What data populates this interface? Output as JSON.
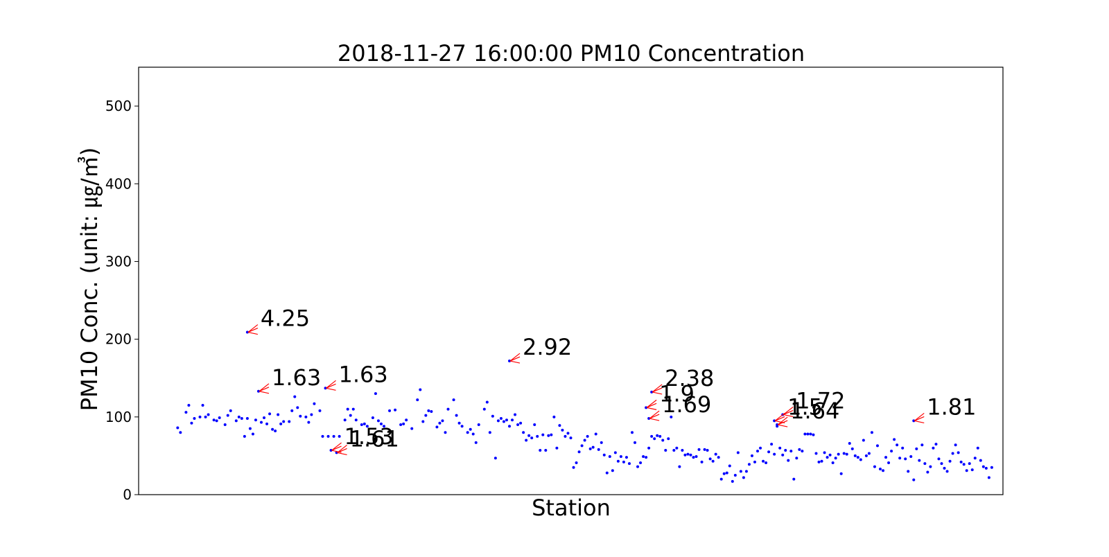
{
  "chart_data": {
    "type": "scatter",
    "title": "2018-11-27 16:00:00 PM10 Concentration",
    "xlabel": "Station",
    "ylabel": "PM10 Conc. (unit: ㎍/㎥)",
    "xlim": [
      -10,
      300
    ],
    "ylim": [
      0,
      550
    ],
    "yticks": [
      0,
      100,
      200,
      300,
      400,
      500
    ],
    "xticks": [],
    "grid": false,
    "legend": "none",
    "colors": {
      "points": "#0000ff",
      "annotations": "#ff0000",
      "frame": "#000000"
    },
    "series": [
      {
        "values": [
          [
            4,
            86
          ],
          [
            5,
            80
          ],
          [
            7,
            106
          ],
          [
            8,
            115
          ],
          [
            9,
            92
          ],
          [
            10,
            98
          ],
          [
            12,
            100
          ],
          [
            13,
            115
          ],
          [
            14,
            100
          ],
          [
            15,
            103
          ],
          [
            17,
            96
          ],
          [
            18,
            95
          ],
          [
            19,
            99
          ],
          [
            21,
            90
          ],
          [
            22,
            102
          ],
          [
            23,
            108
          ],
          [
            25,
            95
          ],
          [
            26,
            100
          ],
          [
            27,
            98
          ],
          [
            28,
            75
          ],
          [
            29,
            98
          ],
          [
            30,
            85
          ],
          [
            31,
            78
          ],
          [
            32,
            96
          ],
          [
            34,
            93
          ],
          [
            35,
            99
          ],
          [
            36,
            91
          ],
          [
            37,
            104
          ],
          [
            38,
            84
          ],
          [
            39,
            82
          ],
          [
            40,
            103
          ],
          [
            41,
            91
          ],
          [
            42,
            94
          ],
          [
            44,
            94
          ],
          [
            45,
            108
          ],
          [
            46,
            126
          ],
          [
            47,
            112
          ],
          [
            48,
            101
          ],
          [
            50,
            100
          ],
          [
            51,
            93
          ],
          [
            52,
            103
          ],
          [
            53,
            117
          ],
          [
            55,
            108
          ],
          [
            56,
            75
          ],
          [
            58,
            75
          ],
          [
            60,
            75
          ],
          [
            62,
            75
          ],
          [
            64,
            96
          ],
          [
            65,
            110
          ],
          [
            66,
            102
          ],
          [
            67,
            110
          ],
          [
            68,
            96
          ],
          [
            70,
            90
          ],
          [
            71,
            91
          ],
          [
            72,
            88
          ],
          [
            74,
            99
          ],
          [
            75,
            130
          ],
          [
            76,
            95
          ],
          [
            77,
            91
          ],
          [
            78,
            88
          ],
          [
            80,
            108
          ],
          [
            82,
            109
          ],
          [
            84,
            90
          ],
          [
            85,
            91
          ],
          [
            86,
            96
          ],
          [
            88,
            85
          ],
          [
            90,
            122
          ],
          [
            91,
            135
          ],
          [
            92,
            94
          ],
          [
            93,
            102
          ],
          [
            94,
            108
          ],
          [
            95,
            107
          ],
          [
            97,
            87
          ],
          [
            98,
            92
          ],
          [
            99,
            95
          ],
          [
            100,
            80
          ],
          [
            101,
            110
          ],
          [
            103,
            122
          ],
          [
            104,
            102
          ],
          [
            105,
            92
          ],
          [
            106,
            88
          ],
          [
            108,
            80
          ],
          [
            109,
            84
          ],
          [
            110,
            78
          ],
          [
            111,
            67
          ],
          [
            112,
            90
          ],
          [
            114,
            110
          ],
          [
            115,
            119
          ],
          [
            116,
            80
          ],
          [
            117,
            101
          ],
          [
            118,
            47
          ],
          [
            119,
            95
          ],
          [
            120,
            98
          ],
          [
            121,
            94
          ],
          [
            122,
            96
          ],
          [
            123,
            88
          ],
          [
            124,
            96
          ],
          [
            125,
            103
          ],
          [
            126,
            90
          ],
          [
            127,
            92
          ],
          [
            128,
            80
          ],
          [
            129,
            70
          ],
          [
            130,
            76
          ],
          [
            131,
            73
          ],
          [
            132,
            90
          ],
          [
            133,
            75
          ],
          [
            134,
            57
          ],
          [
            135,
            77
          ],
          [
            136,
            57
          ],
          [
            137,
            76
          ],
          [
            138,
            77
          ],
          [
            139,
            100
          ],
          [
            140,
            60
          ],
          [
            141,
            89
          ],
          [
            142,
            83
          ],
          [
            143,
            75
          ],
          [
            144,
            79
          ],
          [
            145,
            73
          ],
          [
            146,
            35
          ],
          [
            147,
            41
          ],
          [
            148,
            55
          ],
          [
            149,
            63
          ],
          [
            150,
            70
          ],
          [
            151,
            75
          ],
          [
            152,
            59
          ],
          [
            153,
            61
          ],
          [
            154,
            78
          ],
          [
            155,
            58
          ],
          [
            156,
            67
          ],
          [
            157,
            51
          ],
          [
            158,
            28
          ],
          [
            159,
            49
          ],
          [
            160,
            31
          ],
          [
            161,
            54
          ],
          [
            162,
            43
          ],
          [
            163,
            49
          ],
          [
            164,
            42
          ],
          [
            165,
            48
          ],
          [
            166,
            40
          ],
          [
            167,
            80
          ],
          [
            168,
            67
          ],
          [
            169,
            36
          ],
          [
            170,
            41
          ],
          [
            171,
            49
          ],
          [
            172,
            48
          ],
          [
            173,
            60
          ],
          [
            174,
            75
          ],
          [
            175,
            72
          ],
          [
            176,
            76
          ],
          [
            177,
            75
          ],
          [
            178,
            70
          ],
          [
            179,
            57
          ],
          [
            180,
            72
          ],
          [
            181,
            100
          ],
          [
            182,
            57
          ],
          [
            183,
            60
          ],
          [
            184,
            36
          ],
          [
            185,
            57
          ],
          [
            186,
            51
          ],
          [
            187,
            52
          ],
          [
            188,
            51
          ],
          [
            189,
            48
          ],
          [
            190,
            49
          ],
          [
            191,
            58
          ],
          [
            192,
            42
          ],
          [
            193,
            58
          ],
          [
            194,
            57
          ],
          [
            195,
            46
          ],
          [
            196,
            43
          ],
          [
            197,
            52
          ],
          [
            198,
            48
          ],
          [
            199,
            20
          ],
          [
            200,
            27
          ],
          [
            201,
            28
          ],
          [
            202,
            37
          ],
          [
            203,
            17
          ],
          [
            204,
            25
          ],
          [
            205,
            54
          ],
          [
            206,
            30
          ],
          [
            207,
            22
          ],
          [
            208,
            30
          ],
          [
            209,
            39
          ],
          [
            210,
            50
          ],
          [
            211,
            42
          ],
          [
            212,
            56
          ],
          [
            213,
            60
          ],
          [
            214,
            43
          ],
          [
            215,
            41
          ],
          [
            216,
            55
          ],
          [
            217,
            65
          ],
          [
            218,
            52
          ],
          [
            219,
            88
          ],
          [
            220,
            60
          ],
          [
            221,
            51
          ],
          [
            222,
            57
          ],
          [
            223,
            44
          ],
          [
            224,
            56
          ],
          [
            225,
            20
          ],
          [
            226,
            47
          ],
          [
            227,
            58
          ],
          [
            228,
            56
          ],
          [
            229,
            78
          ],
          [
            230,
            78
          ],
          [
            231,
            78
          ],
          [
            232,
            77
          ],
          [
            233,
            53
          ],
          [
            234,
            42
          ],
          [
            235,
            43
          ],
          [
            236,
            54
          ],
          [
            237,
            48
          ],
          [
            238,
            51
          ],
          [
            239,
            41
          ],
          [
            240,
            47
          ],
          [
            241,
            52
          ],
          [
            242,
            27
          ],
          [
            243,
            53
          ],
          [
            244,
            52
          ],
          [
            245,
            66
          ],
          [
            246,
            59
          ],
          [
            247,
            50
          ],
          [
            248,
            48
          ],
          [
            249,
            45
          ],
          [
            250,
            70
          ],
          [
            251,
            50
          ],
          [
            252,
            53
          ],
          [
            253,
            80
          ],
          [
            254,
            36
          ],
          [
            255,
            63
          ],
          [
            256,
            33
          ],
          [
            257,
            31
          ],
          [
            258,
            48
          ],
          [
            259,
            41
          ],
          [
            260,
            56
          ],
          [
            261,
            71
          ],
          [
            262,
            64
          ],
          [
            263,
            47
          ],
          [
            264,
            60
          ],
          [
            265,
            46
          ],
          [
            266,
            30
          ],
          [
            267,
            49
          ],
          [
            268,
            19
          ],
          [
            269,
            59
          ],
          [
            270,
            44
          ],
          [
            271,
            64
          ],
          [
            272,
            40
          ],
          [
            273,
            29
          ],
          [
            274,
            36
          ],
          [
            275,
            60
          ],
          [
            276,
            65
          ],
          [
            277,
            46
          ],
          [
            278,
            40
          ],
          [
            279,
            34
          ],
          [
            280,
            30
          ],
          [
            281,
            43
          ],
          [
            282,
            53
          ],
          [
            283,
            64
          ],
          [
            284,
            54
          ],
          [
            285,
            42
          ],
          [
            286,
            39
          ],
          [
            287,
            31
          ],
          [
            288,
            40
          ],
          [
            289,
            32
          ],
          [
            290,
            47
          ],
          [
            291,
            60
          ],
          [
            292,
            44
          ],
          [
            293,
            36
          ],
          [
            294,
            34
          ],
          [
            295,
            22
          ],
          [
            296,
            35
          ],
          [
            33,
            133
          ],
          [
            57,
            137
          ],
          [
            59,
            57
          ],
          [
            61,
            54
          ],
          [
            123,
            172
          ],
          [
            29,
            209
          ],
          [
            172,
            112
          ],
          [
            173,
            98
          ],
          [
            174,
            132
          ],
          [
            218,
            95
          ],
          [
            219,
            90
          ],
          [
            221,
            103
          ],
          [
            268,
            95
          ]
        ]
      }
    ],
    "annotations": [
      {
        "label": "4.25",
        "point": [
          29,
          209
        ]
      },
      {
        "label": "1.63",
        "point": [
          33,
          133
        ]
      },
      {
        "label": "1.63",
        "point": [
          57,
          137
        ]
      },
      {
        "label": "1.53",
        "point": [
          59,
          57
        ]
      },
      {
        "label": "1.61",
        "point": [
          61,
          54
        ]
      },
      {
        "label": "2.92",
        "point": [
          123,
          172
        ]
      },
      {
        "label": "2.38",
        "point": [
          174,
          132
        ]
      },
      {
        "label": "1.9",
        "point": [
          172,
          112
        ]
      },
      {
        "label": "1.69",
        "point": [
          173,
          98
        ]
      },
      {
        "label": "1.72",
        "point": [
          221,
          103
        ]
      },
      {
        "label": "1.64",
        "point": [
          219,
          90
        ]
      },
      {
        "label": "1.5",
        "point": [
          218,
          95
        ]
      },
      {
        "label": "1.81",
        "point": [
          268,
          95
        ]
      }
    ]
  }
}
